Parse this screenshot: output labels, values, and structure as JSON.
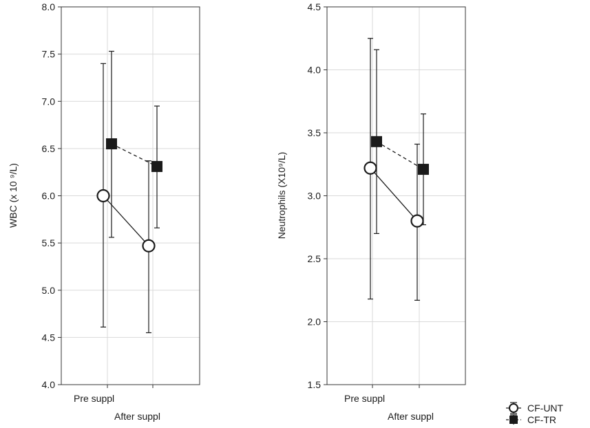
{
  "chart_data": [
    {
      "type": "line",
      "xlabel": "",
      "ylabel": "WBC (x 10 ⁹/L)",
      "ylim": [
        4.0,
        8.0
      ],
      "yticks": [
        "4.0",
        "4.5",
        "5.0",
        "5.5",
        "6.0",
        "6.5",
        "7.0",
        "7.5",
        "8.0"
      ],
      "categories": [
        "Pre suppl",
        "After suppl"
      ],
      "grid": true,
      "series": [
        {
          "name": "CF-UNT",
          "marker": "open-circle",
          "line": "solid",
          "values": [
            6.0,
            5.47
          ],
          "error_low": [
            4.61,
            4.55
          ],
          "error_high": [
            7.4,
            6.37
          ]
        },
        {
          "name": "CF-TR",
          "marker": "filled-square",
          "line": "dashed",
          "values": [
            6.55,
            6.31
          ],
          "error_low": [
            5.56,
            5.66
          ],
          "error_high": [
            7.53,
            6.95
          ]
        }
      ]
    },
    {
      "type": "line",
      "xlabel": "",
      "ylabel": "Neutrophils (X10⁹/L)",
      "ylim": [
        1.5,
        4.5
      ],
      "yticks": [
        "1.5",
        "2.0",
        "2.5",
        "3.0",
        "3.5",
        "4.0",
        "4.5"
      ],
      "categories": [
        "Pre suppl",
        "After suppl"
      ],
      "grid": true,
      "series": [
        {
          "name": "CF-UNT",
          "marker": "open-circle",
          "line": "solid",
          "values": [
            3.22,
            2.8
          ],
          "error_low": [
            2.18,
            2.17
          ],
          "error_high": [
            4.25,
            3.41
          ]
        },
        {
          "name": "CF-TR",
          "marker": "filled-square",
          "line": "dashed",
          "values": [
            3.43,
            3.21
          ],
          "error_low": [
            2.7,
            2.77
          ],
          "error_high": [
            4.16,
            3.65
          ]
        }
      ]
    }
  ],
  "legend": {
    "placement": "bottom-right",
    "items": [
      {
        "label": "CF-UNT",
        "marker": "open-circle"
      },
      {
        "label": "CF-TR",
        "marker": "filled-square"
      }
    ]
  }
}
